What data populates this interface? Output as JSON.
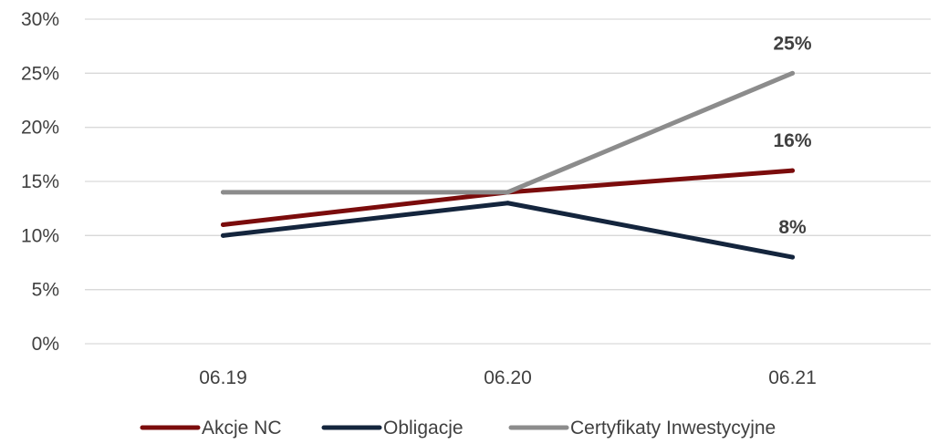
{
  "chart_data": {
    "type": "line",
    "categories": [
      "06.19",
      "06.20",
      "06.21"
    ],
    "series": [
      {
        "name": "Akcje NC",
        "values": [
          11,
          14,
          16
        ],
        "color": "#7b0c0c",
        "label": "16%"
      },
      {
        "name": "Obligacje",
        "values": [
          10,
          13,
          8
        ],
        "color": "#14253d",
        "label": "8%"
      },
      {
        "name": "Certyfikaty Inwestycyjne",
        "values": [
          14,
          14,
          25
        ],
        "color": "#8c8c8c",
        "label": "25%"
      }
    ],
    "y_ticks": [
      "0%",
      "5%",
      "10%",
      "15%",
      "20%",
      "25%",
      "30%"
    ],
    "ylim": [
      0,
      30
    ],
    "grid": true,
    "legend_position": "bottom"
  }
}
